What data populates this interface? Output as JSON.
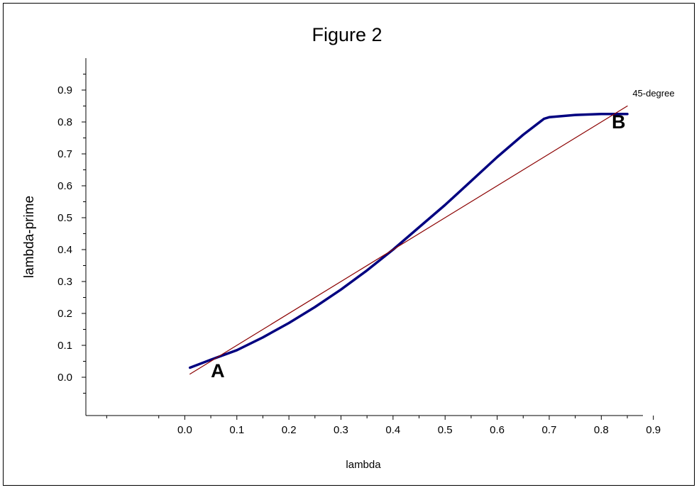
{
  "chart_data": {
    "type": "line",
    "title": "Figure 2",
    "xlabel": "lambda",
    "ylabel": "lambda-prime",
    "xlim": [
      -0.19,
      0.88
    ],
    "ylim": [
      -0.12,
      1.0
    ],
    "x_ticks": [
      "0.0",
      "0.1",
      "0.2",
      "0.3",
      "0.4",
      "0.5",
      "0.6",
      "0.7",
      "0.8",
      "0.9"
    ],
    "y_ticks": [
      "0.0",
      "0.1",
      "0.2",
      "0.3",
      "0.4",
      "0.5",
      "0.6",
      "0.7",
      "0.8",
      "0.9"
    ],
    "x_ticks_minor": [
      -0.15,
      -0.05,
      0.05,
      0.15,
      0.25,
      0.35,
      0.45,
      0.55,
      0.65,
      0.75,
      0.85
    ],
    "y_ticks_minor": [
      -0.05,
      0.05,
      0.15,
      0.25,
      0.35,
      0.45,
      0.55,
      0.65,
      0.75,
      0.85,
      0.95
    ],
    "grid": false,
    "series": [
      {
        "color": "#000080",
        "x": [
          0.01,
          0.05,
          0.1,
          0.15,
          0.2,
          0.25,
          0.3,
          0.35,
          0.4,
          0.45,
          0.5,
          0.55,
          0.6,
          0.65,
          0.69,
          0.7,
          0.75,
          0.8,
          0.85
        ],
        "y": [
          0.03,
          0.055,
          0.085,
          0.125,
          0.17,
          0.22,
          0.275,
          0.335,
          0.4,
          0.47,
          0.54,
          0.615,
          0.69,
          0.76,
          0.81,
          0.815,
          0.822,
          0.825,
          0.825
        ]
      },
      {
        "color": "#8b0000",
        "x": [
          0.01,
          0.85
        ],
        "y": [
          0.01,
          0.85
        ]
      }
    ],
    "annotations": [
      {
        "text": "A",
        "x": 0.05,
        "y": 0.0
      },
      {
        "text": "B",
        "x": 0.82,
        "y": 0.78
      },
      {
        "text": "45-degree",
        "x": 0.86,
        "y": 0.88
      }
    ]
  }
}
